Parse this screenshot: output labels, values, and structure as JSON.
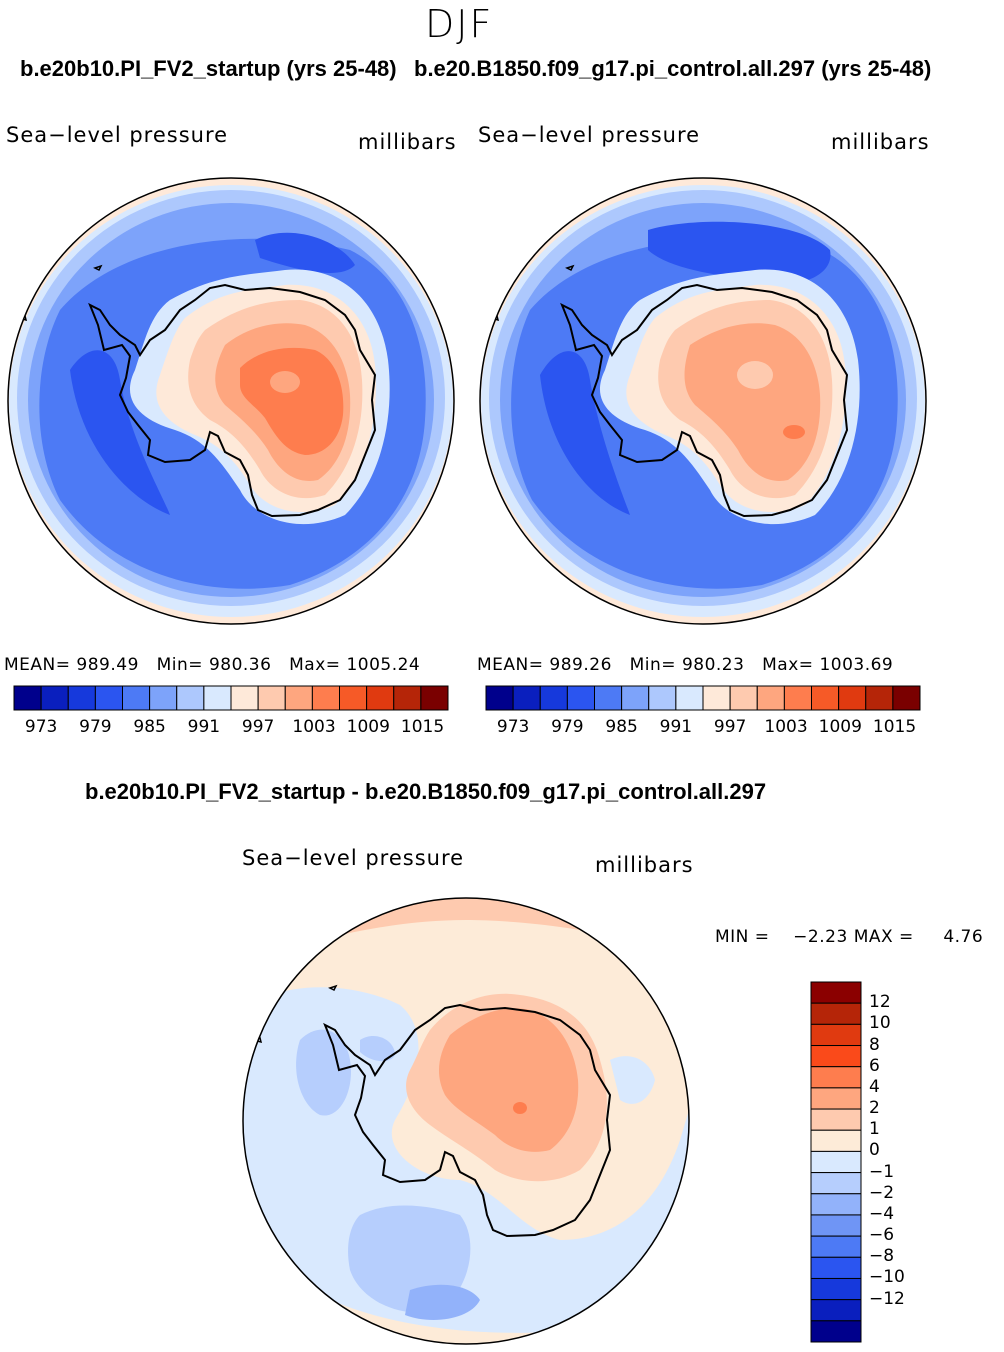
{
  "season": "DJF",
  "header": {
    "left_case": "b.e20b10.PI_FV2_startup (yrs 25-48)",
    "right_case": "b.e20.B1850.f09_g17.pi_control.all.297 (yrs 25-48)"
  },
  "panels": [
    {
      "title": "Sea−level pressure",
      "units": "millibars",
      "stats": {
        "mean_label": "MEAN=",
        "mean": "989.49",
        "min_label": "Min=",
        "min": "980.36",
        "max_label": "Max=",
        "max": "1005.24"
      }
    },
    {
      "title": "Sea−level pressure",
      "units": "millibars",
      "stats": {
        "mean_label": "MEAN=",
        "mean": "989.26",
        "min_label": "Min=",
        "min": "980.23",
        "max_label": "Max=",
        "max": "1003.69"
      }
    }
  ],
  "abs_colorbar": {
    "colors": [
      "#00008c",
      "#0a1fbe",
      "#1639dc",
      "#2b55f0",
      "#4d7af5",
      "#7da3fa",
      "#adc8fd",
      "#d9e9fe",
      "#fee9d9",
      "#fecaaf",
      "#fea67f",
      "#fe7d4e",
      "#f65a27",
      "#e03a10",
      "#b52508",
      "#7a0000"
    ],
    "labels": [
      "973",
      "979",
      "985",
      "991",
      "997",
      "1003",
      "1009",
      "1015"
    ]
  },
  "diff": {
    "title": "b.e20b10.PI_FV2_startup - b.e20.B1850.f09_g17.pi_control.all.297",
    "panel_title": "Sea−level pressure",
    "units": "millibars",
    "min_label": "MIN =",
    "min": "−2.23",
    "max_label": "MAX =",
    "max": "4.76",
    "colorbar": {
      "colors_top_to_bottom": [
        "#8b0000",
        "#b52508",
        "#e03a10",
        "#fa4a1a",
        "#fe7d4e",
        "#fea67f",
        "#fecaaf",
        "#fdebd8",
        "#d9e9fe",
        "#b6cefd",
        "#92b2fa",
        "#6f95f5",
        "#4d7af5",
        "#2b55f0",
        "#1639dc",
        "#0a1fbe",
        "#00008c"
      ],
      "labels": [
        "12",
        "10",
        "8",
        "6",
        "4",
        "2",
        "1",
        "0",
        "−1",
        "−2",
        "−4",
        "−6",
        "−8",
        "−10",
        "−12"
      ]
    }
  }
}
